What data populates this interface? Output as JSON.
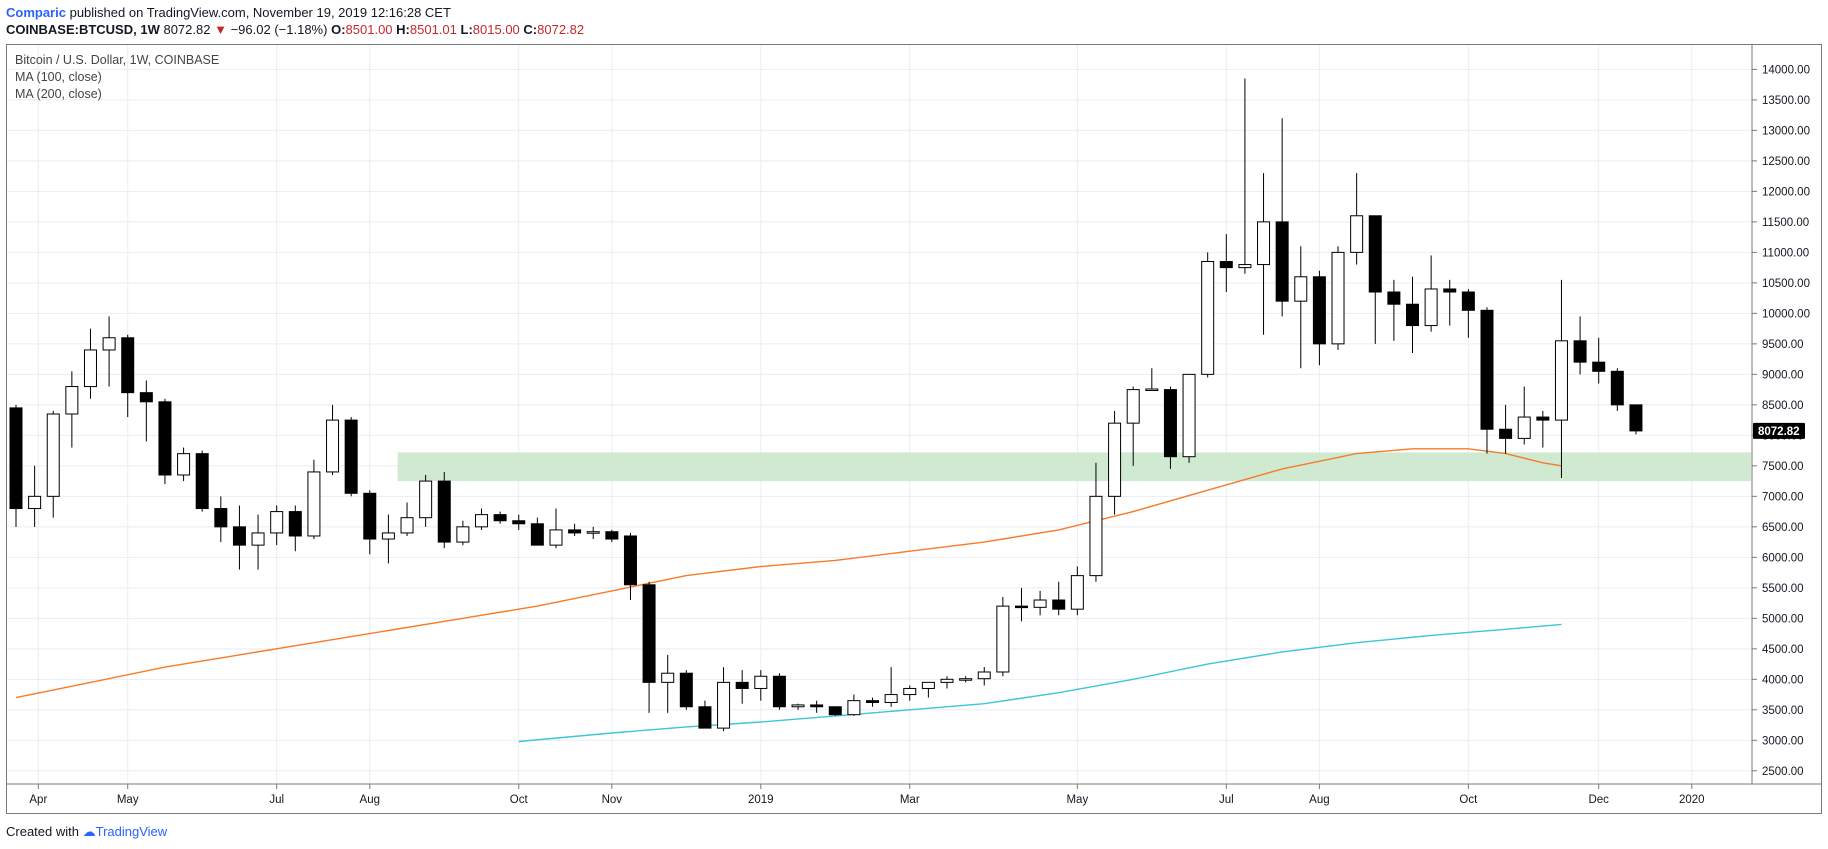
{
  "header": {
    "author": "Comparic",
    "published_text": "published on TradingView.com, November 19, 2019 12:16:28 CET",
    "symbol": "COINBASE:BTCUSD, 1W",
    "last": "8072.82",
    "change_arrow": "▼",
    "change": "−96.02 (−1.18%)",
    "o_label": "O:",
    "o_value": "8501.00",
    "h_label": "H:",
    "h_value": "8501.01",
    "l_label": "L:",
    "l_value": "8015.00",
    "c_label": "C:",
    "c_value": "8072.82"
  },
  "legend": {
    "title": "Bitcoin / U.S. Dollar, 1W, COINBASE",
    "ma100": "MA (100, close)",
    "ma200": "MA (200, close)"
  },
  "footer": {
    "created_with": "Created with",
    "brand": "TradingView"
  },
  "colors": {
    "up_fill": "#ffffff",
    "down_fill": "#000000",
    "ma100": "#f57c2a",
    "ma200": "#3cc6d6",
    "zone": "#c8e6c9",
    "last_price_bg": "#000000",
    "grid": "#e8eef4"
  },
  "chart_data": {
    "type": "candlestick",
    "title": "Bitcoin / U.S. Dollar, 1W, COINBASE",
    "ylim": [
      2300,
      14400
    ],
    "y_ticks": [
      2500,
      3000,
      3500,
      4000,
      4500,
      5000,
      5500,
      6000,
      6500,
      7000,
      7500,
      8000,
      8500,
      9000,
      9500,
      10000,
      10500,
      11000,
      11500,
      12000,
      12500,
      13000,
      13500,
      14000
    ],
    "y_tick_labels": [
      "2500.00",
      "3000.00",
      "3500.00",
      "4000.00",
      "4500.00",
      "5000.00",
      "5500.00",
      "6000.00",
      "6500.00",
      "7000.00",
      "7500.00",
      "8000.00",
      "8500.00",
      "9000.00",
      "9500.00",
      "10000.00",
      "10500.00",
      "11000.00",
      "11500.00",
      "12000.00",
      "12500.00",
      "13000.00",
      "13500.00",
      "14000.00"
    ],
    "x_labels": [
      "Apr",
      "May",
      "Jul",
      "Aug",
      "Oct",
      "Nov",
      "2019",
      "Mar",
      "May",
      "Jul",
      "Aug",
      "Oct",
      "Dec",
      "2020"
    ],
    "x_label_index": [
      1.2,
      6,
      14,
      19,
      27,
      32,
      40,
      48,
      57,
      65,
      70,
      78,
      85,
      90
    ],
    "last_price_label": "8072.82",
    "support_zone": {
      "low": 7250,
      "high": 7720,
      "from_index": 20.5
    },
    "candles": [
      {
        "o": 8450,
        "h": 8500,
        "l": 6500,
        "c": 6800
      },
      {
        "o": 6800,
        "h": 7500,
        "l": 6500,
        "c": 7000
      },
      {
        "o": 7000,
        "h": 8400,
        "l": 6650,
        "c": 8350
      },
      {
        "o": 8350,
        "h": 9050,
        "l": 7800,
        "c": 8800
      },
      {
        "o": 8800,
        "h": 9750,
        "l": 8600,
        "c": 9400
      },
      {
        "o": 9400,
        "h": 9950,
        "l": 8800,
        "c": 9600
      },
      {
        "o": 9600,
        "h": 9650,
        "l": 8300,
        "c": 8700
      },
      {
        "o": 8700,
        "h": 8900,
        "l": 7900,
        "c": 8550
      },
      {
        "o": 8550,
        "h": 8600,
        "l": 7200,
        "c": 7350
      },
      {
        "o": 7350,
        "h": 7800,
        "l": 7250,
        "c": 7700
      },
      {
        "o": 7700,
        "h": 7750,
        "l": 6750,
        "c": 6800
      },
      {
        "o": 6800,
        "h": 7000,
        "l": 6250,
        "c": 6500
      },
      {
        "o": 6500,
        "h": 6850,
        "l": 5800,
        "c": 6200
      },
      {
        "o": 6200,
        "h": 6700,
        "l": 5800,
        "c": 6400
      },
      {
        "o": 6400,
        "h": 6850,
        "l": 6200,
        "c": 6750
      },
      {
        "o": 6750,
        "h": 6850,
        "l": 6100,
        "c": 6350
      },
      {
        "o": 6350,
        "h": 7600,
        "l": 6300,
        "c": 7400
      },
      {
        "o": 7400,
        "h": 8500,
        "l": 7350,
        "c": 8250
      },
      {
        "o": 8250,
        "h": 8300,
        "l": 7000,
        "c": 7050
      },
      {
        "o": 7050,
        "h": 7100,
        "l": 6050,
        "c": 6300
      },
      {
        "o": 6300,
        "h": 6700,
        "l": 5900,
        "c": 6400
      },
      {
        "o": 6400,
        "h": 6900,
        "l": 6350,
        "c": 6650
      },
      {
        "o": 6650,
        "h": 7350,
        "l": 6500,
        "c": 7250
      },
      {
        "o": 7250,
        "h": 7400,
        "l": 6150,
        "c": 6250
      },
      {
        "o": 6250,
        "h": 6600,
        "l": 6200,
        "c": 6500
      },
      {
        "o": 6500,
        "h": 6800,
        "l": 6450,
        "c": 6700
      },
      {
        "o": 6700,
        "h": 6750,
        "l": 6550,
        "c": 6600
      },
      {
        "o": 6600,
        "h": 6700,
        "l": 6450,
        "c": 6550
      },
      {
        "o": 6550,
        "h": 6650,
        "l": 6200,
        "c": 6200
      },
      {
        "o": 6200,
        "h": 6800,
        "l": 6150,
        "c": 6450
      },
      {
        "o": 6450,
        "h": 6550,
        "l": 6350,
        "c": 6400
      },
      {
        "o": 6400,
        "h": 6500,
        "l": 6300,
        "c": 6420
      },
      {
        "o": 6420,
        "h": 6450,
        "l": 6250,
        "c": 6300
      },
      {
        "o": 6350,
        "h": 6400,
        "l": 5300,
        "c": 5550
      },
      {
        "o": 5550,
        "h": 5600,
        "l": 3450,
        "c": 3950
      },
      {
        "o": 3950,
        "h": 4400,
        "l": 3450,
        "c": 4100
      },
      {
        "o": 4100,
        "h": 4150,
        "l": 3500,
        "c": 3550
      },
      {
        "o": 3550,
        "h": 3650,
        "l": 3200,
        "c": 3200
      },
      {
        "o": 3200,
        "h": 4200,
        "l": 3150,
        "c": 3950
      },
      {
        "o": 3950,
        "h": 4150,
        "l": 3600,
        "c": 3850
      },
      {
        "o": 3850,
        "h": 4150,
        "l": 3650,
        "c": 4050
      },
      {
        "o": 4050,
        "h": 4100,
        "l": 3500,
        "c": 3550
      },
      {
        "o": 3550,
        "h": 3600,
        "l": 3500,
        "c": 3580
      },
      {
        "o": 3580,
        "h": 3650,
        "l": 3450,
        "c": 3550
      },
      {
        "o": 3550,
        "h": 3550,
        "l": 3400,
        "c": 3420
      },
      {
        "o": 3420,
        "h": 3750,
        "l": 3400,
        "c": 3650
      },
      {
        "o": 3650,
        "h": 3700,
        "l": 3550,
        "c": 3620
      },
      {
        "o": 3620,
        "h": 4200,
        "l": 3550,
        "c": 3750
      },
      {
        "o": 3750,
        "h": 3900,
        "l": 3650,
        "c": 3850
      },
      {
        "o": 3850,
        "h": 3950,
        "l": 3700,
        "c": 3950
      },
      {
        "o": 3950,
        "h": 4050,
        "l": 3850,
        "c": 4000
      },
      {
        "o": 4000,
        "h": 4050,
        "l": 3950,
        "c": 4010
      },
      {
        "o": 4010,
        "h": 4200,
        "l": 3900,
        "c": 4120
      },
      {
        "o": 4120,
        "h": 5350,
        "l": 4050,
        "c": 5200
      },
      {
        "o": 5200,
        "h": 5500,
        "l": 4950,
        "c": 5180
      },
      {
        "o": 5180,
        "h": 5450,
        "l": 5050,
        "c": 5300
      },
      {
        "o": 5300,
        "h": 5600,
        "l": 5050,
        "c": 5150
      },
      {
        "o": 5150,
        "h": 5850,
        "l": 5050,
        "c": 5700
      },
      {
        "o": 5700,
        "h": 7550,
        "l": 5600,
        "c": 7000
      },
      {
        "o": 7000,
        "h": 8400,
        "l": 6700,
        "c": 8200
      },
      {
        "o": 8200,
        "h": 8800,
        "l": 7500,
        "c": 8750
      },
      {
        "o": 8750,
        "h": 9100,
        "l": 8750,
        "c": 8760
      },
      {
        "o": 8750,
        "h": 8800,
        "l": 7450,
        "c": 7650
      },
      {
        "o": 7650,
        "h": 9000,
        "l": 7550,
        "c": 9000
      },
      {
        "o": 9000,
        "h": 11000,
        "l": 8950,
        "c": 10850
      },
      {
        "o": 10850,
        "h": 11300,
        "l": 10350,
        "c": 10750
      },
      {
        "o": 10750,
        "h": 13850,
        "l": 10650,
        "c": 10800
      },
      {
        "o": 10800,
        "h": 12300,
        "l": 9650,
        "c": 11500
      },
      {
        "o": 11500,
        "h": 13200,
        "l": 9950,
        "c": 10200
      },
      {
        "o": 10200,
        "h": 11100,
        "l": 9100,
        "c": 10600
      },
      {
        "o": 10600,
        "h": 10700,
        "l": 9150,
        "c": 9500
      },
      {
        "o": 9500,
        "h": 11100,
        "l": 9400,
        "c": 11000
      },
      {
        "o": 11000,
        "h": 12300,
        "l": 10800,
        "c": 11600
      },
      {
        "o": 11600,
        "h": 11600,
        "l": 9500,
        "c": 10350
      },
      {
        "o": 10350,
        "h": 10550,
        "l": 9550,
        "c": 10150
      },
      {
        "o": 10150,
        "h": 10600,
        "l": 9350,
        "c": 9800
      },
      {
        "o": 9800,
        "h": 10950,
        "l": 9700,
        "c": 10400
      },
      {
        "o": 10400,
        "h": 10550,
        "l": 9800,
        "c": 10350
      },
      {
        "o": 10350,
        "h": 10400,
        "l": 9600,
        "c": 10050
      },
      {
        "o": 10050,
        "h": 10100,
        "l": 7700,
        "c": 8100
      },
      {
        "o": 8100,
        "h": 8500,
        "l": 7700,
        "c": 7950
      },
      {
        "o": 7950,
        "h": 8800,
        "l": 7850,
        "c": 8300
      },
      {
        "o": 8300,
        "h": 8400,
        "l": 7800,
        "c": 8250
      },
      {
        "o": 8250,
        "h": 10550,
        "l": 7300,
        "c": 9550
      },
      {
        "o": 9550,
        "h": 9950,
        "l": 9000,
        "c": 9200
      },
      {
        "o": 9200,
        "h": 9600,
        "l": 8850,
        "c": 9050
      },
      {
        "o": 9050,
        "h": 9100,
        "l": 8400,
        "c": 8500
      },
      {
        "o": 8500,
        "h": 8501,
        "l": 8015,
        "c": 8072.82
      }
    ],
    "ma100": [
      [
        0,
        3700
      ],
      [
        4,
        3950
      ],
      [
        8,
        4200
      ],
      [
        12,
        4400
      ],
      [
        16,
        4600
      ],
      [
        20,
        4800
      ],
      [
        24,
        5000
      ],
      [
        28,
        5200
      ],
      [
        32,
        5450
      ],
      [
        36,
        5700
      ],
      [
        40,
        5850
      ],
      [
        44,
        5950
      ],
      [
        48,
        6100
      ],
      [
        52,
        6250
      ],
      [
        56,
        6450
      ],
      [
        60,
        6750
      ],
      [
        64,
        7100
      ],
      [
        68,
        7450
      ],
      [
        72,
        7700
      ],
      [
        75,
        7780
      ],
      [
        78,
        7780
      ],
      [
        80,
        7700
      ],
      [
        82,
        7550
      ],
      [
        83,
        7500
      ]
    ],
    "ma200": [
      [
        27,
        2980
      ],
      [
        32,
        3120
      ],
      [
        36,
        3220
      ],
      [
        40,
        3300
      ],
      [
        44,
        3400
      ],
      [
        48,
        3500
      ],
      [
        52,
        3600
      ],
      [
        56,
        3780
      ],
      [
        60,
        4000
      ],
      [
        64,
        4250
      ],
      [
        68,
        4450
      ],
      [
        72,
        4600
      ],
      [
        76,
        4720
      ],
      [
        80,
        4820
      ],
      [
        83,
        4900
      ]
    ]
  }
}
